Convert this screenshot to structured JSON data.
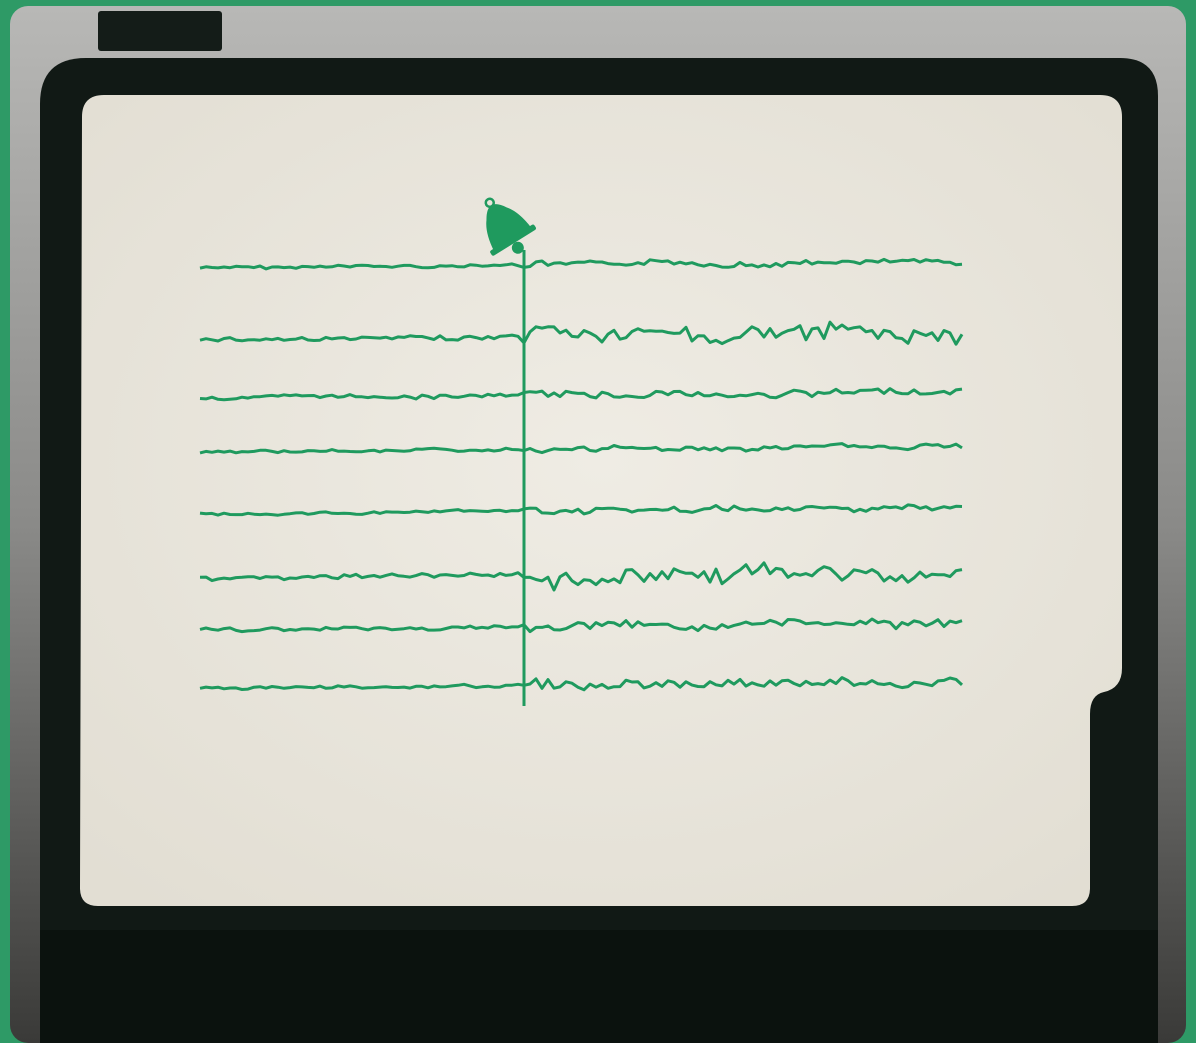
{
  "colors": {
    "background_green": "#2e9a66",
    "monitor_gray": "#9c9c9c",
    "bezel_dark": "#101a14",
    "screen_paper": "#eae7de",
    "trace_green": "#1f9a5e"
  },
  "icons": {
    "stimulus_marker": "bell-icon"
  },
  "traces": [
    {
      "amplitude_before": 0.18,
      "amplitude_after": 0.35
    },
    {
      "amplitude_before": 0.25,
      "amplitude_after": 1.0
    },
    {
      "amplitude_before": 0.25,
      "amplitude_after": 0.45
    },
    {
      "amplitude_before": 0.15,
      "amplitude_after": 0.3
    },
    {
      "amplitude_before": 0.15,
      "amplitude_after": 0.35
    },
    {
      "amplitude_before": 0.3,
      "amplitude_after": 1.0
    },
    {
      "amplitude_before": 0.2,
      "amplitude_after": 0.5
    },
    {
      "amplitude_before": 0.18,
      "amplitude_after": 0.55
    }
  ]
}
